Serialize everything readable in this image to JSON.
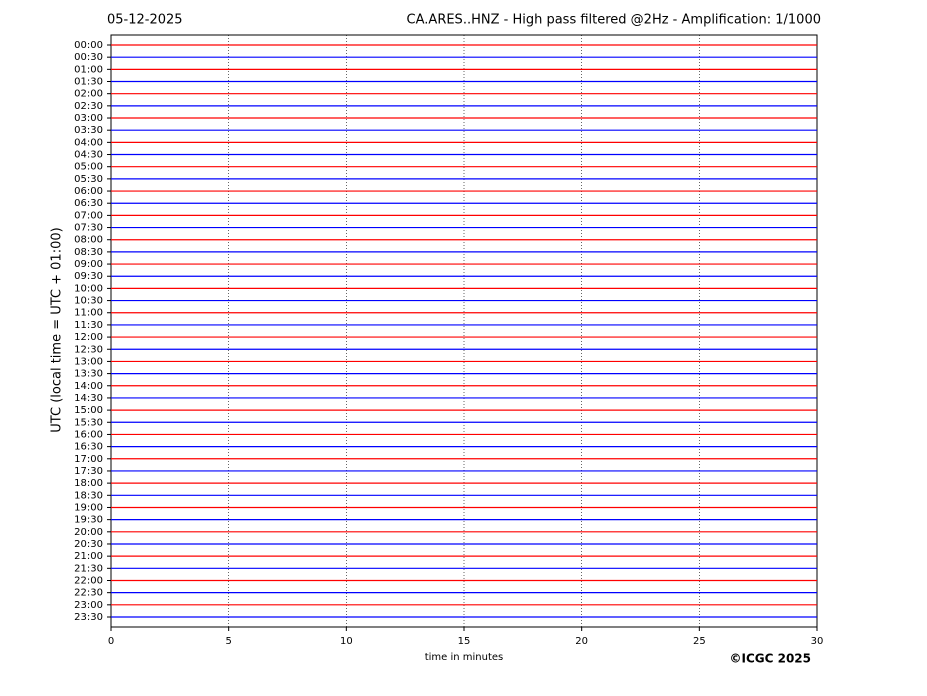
{
  "chart_data": {
    "type": "helicorder",
    "date": "05-12-2025",
    "title": "CA.ARES..HNZ - High pass filtered @2Hz - Amplification: 1/1000",
    "xlabel": "time in minutes",
    "ylabel": "UTC (local time = UTC + 01:00)",
    "copyright": "©ICGC 2025",
    "categories": [
      "00:00",
      "00:30",
      "01:00",
      "01:30",
      "02:00",
      "02:30",
      "03:00",
      "03:30",
      "04:00",
      "04:30",
      "05:00",
      "05:30",
      "06:00",
      "06:30",
      "07:00",
      "07:30",
      "08:00",
      "08:30",
      "09:00",
      "09:30",
      "10:00",
      "10:30",
      "11:00",
      "11:30",
      "12:00",
      "12:30",
      "13:00",
      "13:30",
      "14:00",
      "14:30",
      "15:00",
      "15:30",
      "16:00",
      "16:30",
      "17:00",
      "17:30",
      "18:00",
      "18:30",
      "19:00",
      "19:30",
      "20:00",
      "20:30",
      "21:00",
      "21:30",
      "22:00",
      "22:30",
      "23:00",
      "23:30"
    ],
    "colors": [
      "#ff0000",
      "#0000ff"
    ],
    "xlim": [
      0,
      30
    ],
    "xticks": [
      0,
      5,
      10,
      15,
      20,
      25,
      30
    ],
    "grid": true
  }
}
